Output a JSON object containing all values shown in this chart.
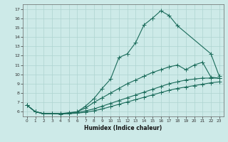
{
  "xlabel": "Humidex (Indice chaleur)",
  "bg_color": "#cdeae8",
  "line_color": "#1a6b5a",
  "grid_color": "#aed4d0",
  "xlim": [
    -0.5,
    23.5
  ],
  "ylim": [
    5.5,
    17.5
  ],
  "xticks": [
    0,
    1,
    2,
    3,
    4,
    5,
    6,
    7,
    8,
    9,
    10,
    11,
    12,
    13,
    14,
    15,
    16,
    17,
    18,
    19,
    20,
    21,
    22,
    23
  ],
  "yticks": [
    6,
    7,
    8,
    9,
    10,
    11,
    12,
    13,
    14,
    15,
    16,
    17
  ],
  "line1_x": [
    0,
    1,
    2,
    3,
    4,
    5,
    6,
    7,
    8,
    9,
    10,
    11,
    12,
    13,
    14,
    15,
    16,
    17,
    18,
    22,
    23
  ],
  "line1_y": [
    6.7,
    6.0,
    5.8,
    5.8,
    5.8,
    5.85,
    6.0,
    6.6,
    7.4,
    8.5,
    9.5,
    11.8,
    12.2,
    13.4,
    15.3,
    16.0,
    16.8,
    16.3,
    15.2,
    12.2,
    9.8
  ],
  "line2_x": [
    0,
    1,
    2,
    3,
    4,
    5,
    6,
    7,
    8,
    9,
    10,
    11,
    12,
    13,
    14,
    15,
    16,
    17,
    18,
    19,
    20,
    21,
    22,
    23
  ],
  "line2_y": [
    6.7,
    6.0,
    5.8,
    5.8,
    5.8,
    5.9,
    6.0,
    6.4,
    7.0,
    7.5,
    8.0,
    8.5,
    9.0,
    9.4,
    9.8,
    10.2,
    10.5,
    10.8,
    11.0,
    10.5,
    11.0,
    11.3,
    9.7,
    9.6
  ],
  "line3_x": [
    0,
    1,
    2,
    3,
    4,
    5,
    6,
    7,
    8,
    9,
    10,
    11,
    12,
    13,
    14,
    15,
    16,
    17,
    18,
    19,
    20,
    21,
    22,
    23
  ],
  "line3_y": [
    6.7,
    6.0,
    5.8,
    5.8,
    5.8,
    5.85,
    5.9,
    6.1,
    6.3,
    6.6,
    6.9,
    7.2,
    7.5,
    7.8,
    8.1,
    8.4,
    8.7,
    9.0,
    9.2,
    9.4,
    9.5,
    9.6,
    9.6,
    9.6
  ],
  "line4_x": [
    0,
    1,
    2,
    3,
    4,
    5,
    6,
    7,
    8,
    9,
    10,
    11,
    12,
    13,
    14,
    15,
    16,
    17,
    18,
    19,
    20,
    21,
    22,
    23
  ],
  "line4_y": [
    6.7,
    6.0,
    5.8,
    5.8,
    5.75,
    5.8,
    5.85,
    5.95,
    6.1,
    6.3,
    6.55,
    6.8,
    7.05,
    7.3,
    7.55,
    7.8,
    8.05,
    8.3,
    8.5,
    8.65,
    8.8,
    8.95,
    9.1,
    9.2
  ]
}
